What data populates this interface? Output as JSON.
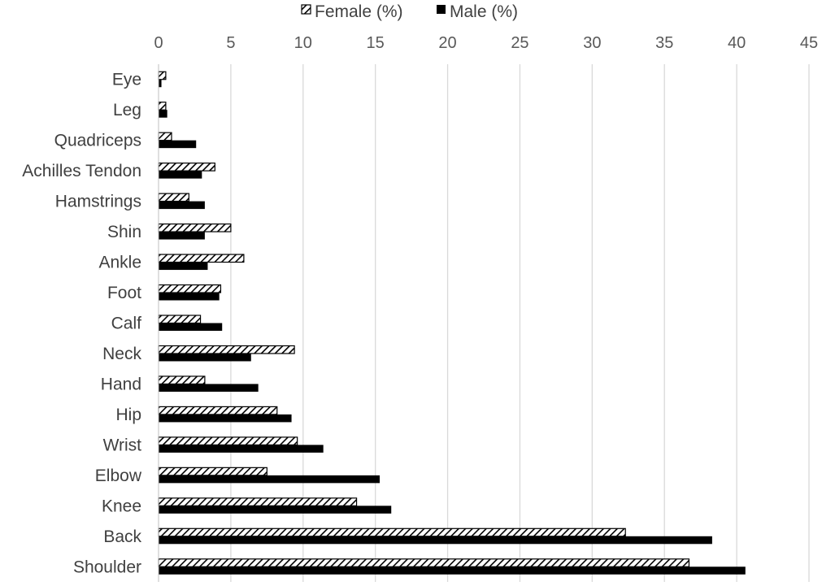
{
  "chart_data": {
    "type": "bar",
    "orientation": "horizontal",
    "categories": [
      "Eye",
      "Leg",
      "Quadriceps",
      "Achilles Tendon",
      "Hamstrings",
      "Shin",
      "Ankle",
      "Foot",
      "Calf",
      "Neck",
      "Hand",
      "Hip",
      "Wrist",
      "Elbow",
      "Knee",
      "Back",
      "Shoulder"
    ],
    "series": [
      {
        "name": "Female (%)",
        "fill": "hatched",
        "values": [
          0.5,
          0.5,
          0.9,
          3.9,
          2.1,
          5.0,
          5.9,
          4.3,
          2.9,
          9.4,
          3.2,
          8.2,
          9.6,
          7.5,
          13.7,
          32.3,
          36.7
        ]
      },
      {
        "name": "Male (%)",
        "fill": "solid",
        "values": [
          0.2,
          0.6,
          2.6,
          3.0,
          3.2,
          3.2,
          3.4,
          4.2,
          4.4,
          6.4,
          6.9,
          9.2,
          11.4,
          15.3,
          16.1,
          38.3,
          40.6
        ]
      }
    ],
    "xlim": [
      0,
      45
    ],
    "xticks": [
      0,
      5,
      10,
      15,
      20,
      25,
      30,
      35,
      40,
      45
    ],
    "x_axis_position": "top",
    "grid": "vertical",
    "legend": "top-center",
    "title": "",
    "xlabel": "",
    "ylabel": "",
    "colors": {
      "bar": "#000000",
      "grid": "#d9d9d9",
      "axis": "#bfbfbf",
      "text": "#404040"
    }
  }
}
